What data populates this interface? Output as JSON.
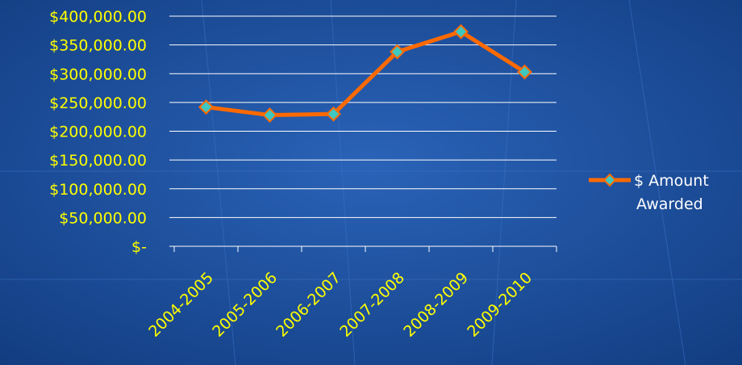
{
  "colors": {
    "background": "#1c4f9e",
    "tick_label": "#ffff00",
    "legend_label": "#ffffff",
    "grid": "#ffffff",
    "line": "#ff6a00",
    "marker_fill": "#3fc7c0",
    "marker_edge": "#ff6a00"
  },
  "chart_data": {
    "type": "line",
    "title": "",
    "xlabel": "",
    "ylabel": "",
    "categories": [
      "2004-2005",
      "2005-2006",
      "2006-2007",
      "2007-2008",
      "2008-2009",
      "2009-2010"
    ],
    "series": [
      {
        "name": "$ Amount Awarded",
        "legend_lines": [
          "$ Amount",
          "Awarded"
        ],
        "values": [
          242000,
          228000,
          230000,
          338000,
          373000,
          303000
        ],
        "marker": "diamond"
      }
    ],
    "ylim": [
      0,
      400000
    ],
    "y_tick_labels": [
      "$-",
      "$50,000.00",
      "$100,000.00",
      "$150,000.00",
      "$200,000.00",
      "$250,000.00",
      "$300,000.00",
      "$350,000.00",
      "$400,000.00"
    ],
    "grid": true,
    "legend_position": "right"
  }
}
